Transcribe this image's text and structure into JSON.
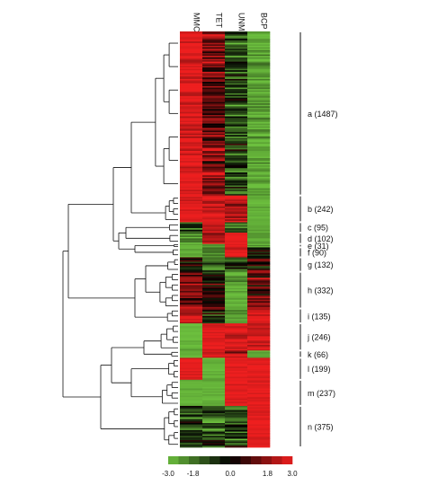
{
  "chart_data": {
    "type": "heatmap",
    "title": "",
    "xlabel": "",
    "ylabel": "",
    "columns": [
      "MMC",
      "TET",
      "UNM",
      "BCP"
    ],
    "clusters": [
      {
        "label": "a (1487)",
        "size": 1487,
        "means": [
          2.8,
          1.3,
          -1.2,
          -2.6
        ],
        "noise": [
          0.45,
          1.2,
          1.1,
          0.5
        ]
      },
      {
        "label": "b (242)",
        "size": 242,
        "means": [
          2.9,
          2.7,
          2.3,
          -2.8
        ],
        "noise": [
          0.3,
          0.5,
          0.8,
          0.2
        ]
      },
      {
        "label": "c (95)",
        "size": 95,
        "means": [
          -1.5,
          2.5,
          -1.8,
          -2.8
        ],
        "noise": [
          1.0,
          0.6,
          0.8,
          0.2
        ]
      },
      {
        "label": "d (102)",
        "size": 102,
        "means": [
          -2.3,
          2.2,
          2.9,
          -2.4
        ],
        "noise": [
          0.8,
          0.8,
          0.2,
          0.5
        ]
      },
      {
        "label": "e (31)",
        "size": 31,
        "means": [
          -2.6,
          -2.6,
          2.9,
          -2.6
        ],
        "noise": [
          0.4,
          0.4,
          0.2,
          0.4
        ]
      },
      {
        "label": "f (90)",
        "size": 90,
        "means": [
          -2.7,
          -2.0,
          2.6,
          -0.5
        ],
        "noise": [
          0.3,
          0.6,
          0.4,
          1.0
        ]
      },
      {
        "label": "g (132)",
        "size": 132,
        "means": [
          0.3,
          -1.2,
          -1.2,
          0.3
        ],
        "noise": [
          1.1,
          1.0,
          1.0,
          1.0
        ]
      },
      {
        "label": "h (332)",
        "size": 332,
        "means": [
          1.6,
          0.3,
          -2.6,
          1.2
        ],
        "noise": [
          1.0,
          1.1,
          0.5,
          1.1
        ]
      },
      {
        "label": "i (135)",
        "size": 135,
        "means": [
          2.2,
          -0.8,
          -2.5,
          2.4
        ],
        "noise": [
          0.6,
          1.0,
          0.4,
          0.6
        ]
      },
      {
        "label": "j (246)",
        "size": 246,
        "means": [
          -2.8,
          2.8,
          2.7,
          2.6
        ],
        "noise": [
          0.2,
          0.3,
          0.4,
          0.5
        ]
      },
      {
        "label": "k (66)",
        "size": 66,
        "means": [
          -2.8,
          2.7,
          2.0,
          -2.6
        ],
        "noise": [
          0.2,
          0.3,
          0.7,
          0.3
        ]
      },
      {
        "label": "l (199)",
        "size": 199,
        "means": [
          2.9,
          -2.8,
          2.9,
          2.9
        ],
        "noise": [
          0.2,
          0.2,
          0.2,
          0.2
        ]
      },
      {
        "label": "m (237)",
        "size": 237,
        "means": [
          -2.8,
          -2.8,
          2.9,
          2.9
        ],
        "noise": [
          0.2,
          0.2,
          0.2,
          0.2
        ]
      },
      {
        "label": "n (375)",
        "size": 375,
        "means": [
          -1.0,
          -1.3,
          -1.3,
          2.9
        ],
        "noise": [
          1.1,
          1.0,
          1.0,
          0.2
        ]
      }
    ],
    "color_scale": {
      "min": -3.0,
      "max": 3.0,
      "low_color": "#6cbf3e",
      "mid_color": "#000000",
      "high_color": "#ee1f1f",
      "tick_labels": [
        "-3.0",
        "-1.8",
        "0.0",
        "1.8",
        "3.0"
      ]
    }
  }
}
